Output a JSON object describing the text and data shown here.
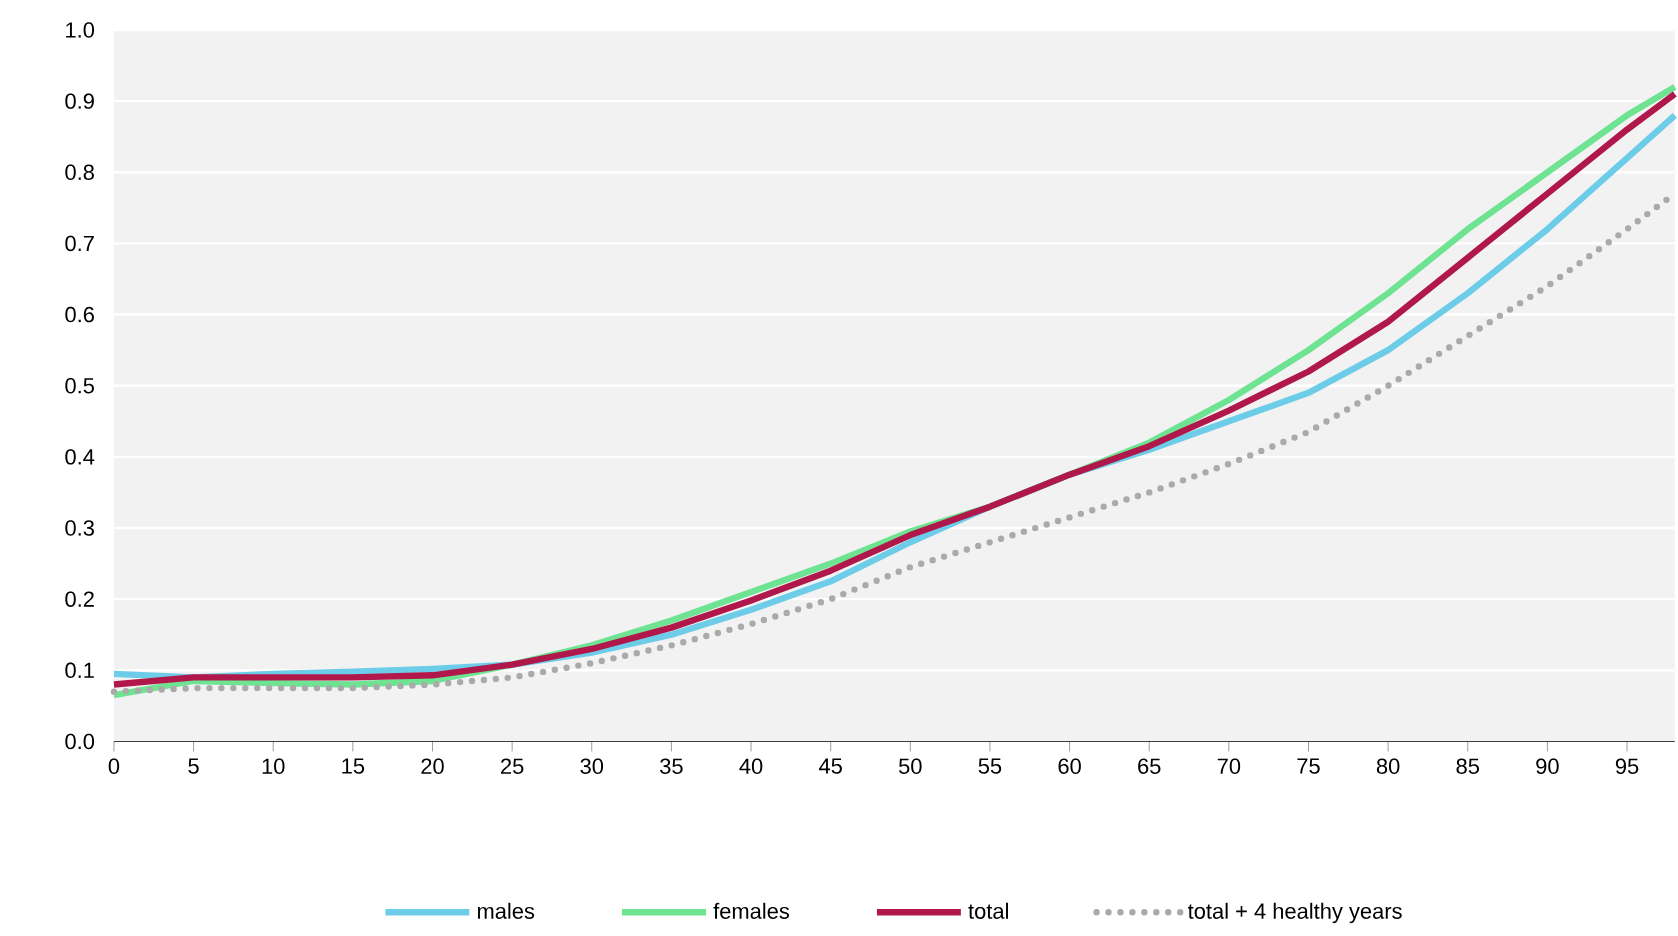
{
  "chart_data": {
    "type": "line",
    "x": [
      0,
      5,
      10,
      15,
      20,
      25,
      30,
      35,
      40,
      45,
      50,
      55,
      60,
      65,
      70,
      75,
      80,
      85,
      90,
      95,
      98
    ],
    "series": [
      {
        "name": "males",
        "color": "#6dcde8",
        "values": [
          0.095,
          0.09,
          0.095,
          0.098,
          0.102,
          0.108,
          0.125,
          0.15,
          0.185,
          0.225,
          0.28,
          0.33,
          0.375,
          0.41,
          0.45,
          0.49,
          0.55,
          0.63,
          0.72,
          0.82,
          0.88
        ]
      },
      {
        "name": "females",
        "color": "#6ee493",
        "values": [
          0.065,
          0.085,
          0.082,
          0.08,
          0.085,
          0.108,
          0.135,
          0.17,
          0.21,
          0.25,
          0.295,
          0.33,
          0.375,
          0.42,
          0.48,
          0.55,
          0.63,
          0.72,
          0.8,
          0.88,
          0.92
        ]
      },
      {
        "name": "total",
        "color": "#b0174a",
        "values": [
          0.08,
          0.09,
          0.09,
          0.09,
          0.093,
          0.108,
          0.13,
          0.16,
          0.198,
          0.24,
          0.29,
          0.33,
          0.375,
          0.415,
          0.465,
          0.52,
          0.59,
          0.68,
          0.77,
          0.86,
          0.91
        ]
      },
      {
        "name": "total + 4 healthy years",
        "color": "#aaaaaa",
        "line_style": "dotted",
        "values": [
          0.07,
          0.075,
          0.075,
          0.075,
          0.08,
          0.09,
          0.11,
          0.135,
          0.165,
          0.2,
          0.245,
          0.28,
          0.315,
          0.35,
          0.39,
          0.435,
          0.5,
          0.57,
          0.64,
          0.72,
          0.77
        ]
      }
    ],
    "xlim": [
      0,
      98
    ],
    "xticks": [
      0,
      5,
      10,
      15,
      20,
      25,
      30,
      35,
      40,
      45,
      50,
      55,
      60,
      65,
      70,
      75,
      80,
      85,
      90,
      95
    ],
    "ylim": [
      0,
      1
    ],
    "yticks": [
      {
        "value": 0,
        "label": "0.0"
      },
      {
        "value": 0.1,
        "label": "0.1"
      },
      {
        "value": 0.2,
        "label": "0.2"
      },
      {
        "value": 0.3,
        "label": "0.3"
      },
      {
        "value": 0.4,
        "label": "0.4"
      },
      {
        "value": 0.5,
        "label": "0.5"
      },
      {
        "value": 0.6,
        "label": "0.6"
      },
      {
        "value": 0.7,
        "label": "0.7"
      },
      {
        "value": 0.8,
        "label": "0.8"
      },
      {
        "value": 0.9,
        "label": "0.9"
      },
      {
        "value": 1,
        "label": "1.0"
      }
    ],
    "grid": "y",
    "legend": "bottom",
    "line_style": "solid",
    "marker": "none"
  }
}
